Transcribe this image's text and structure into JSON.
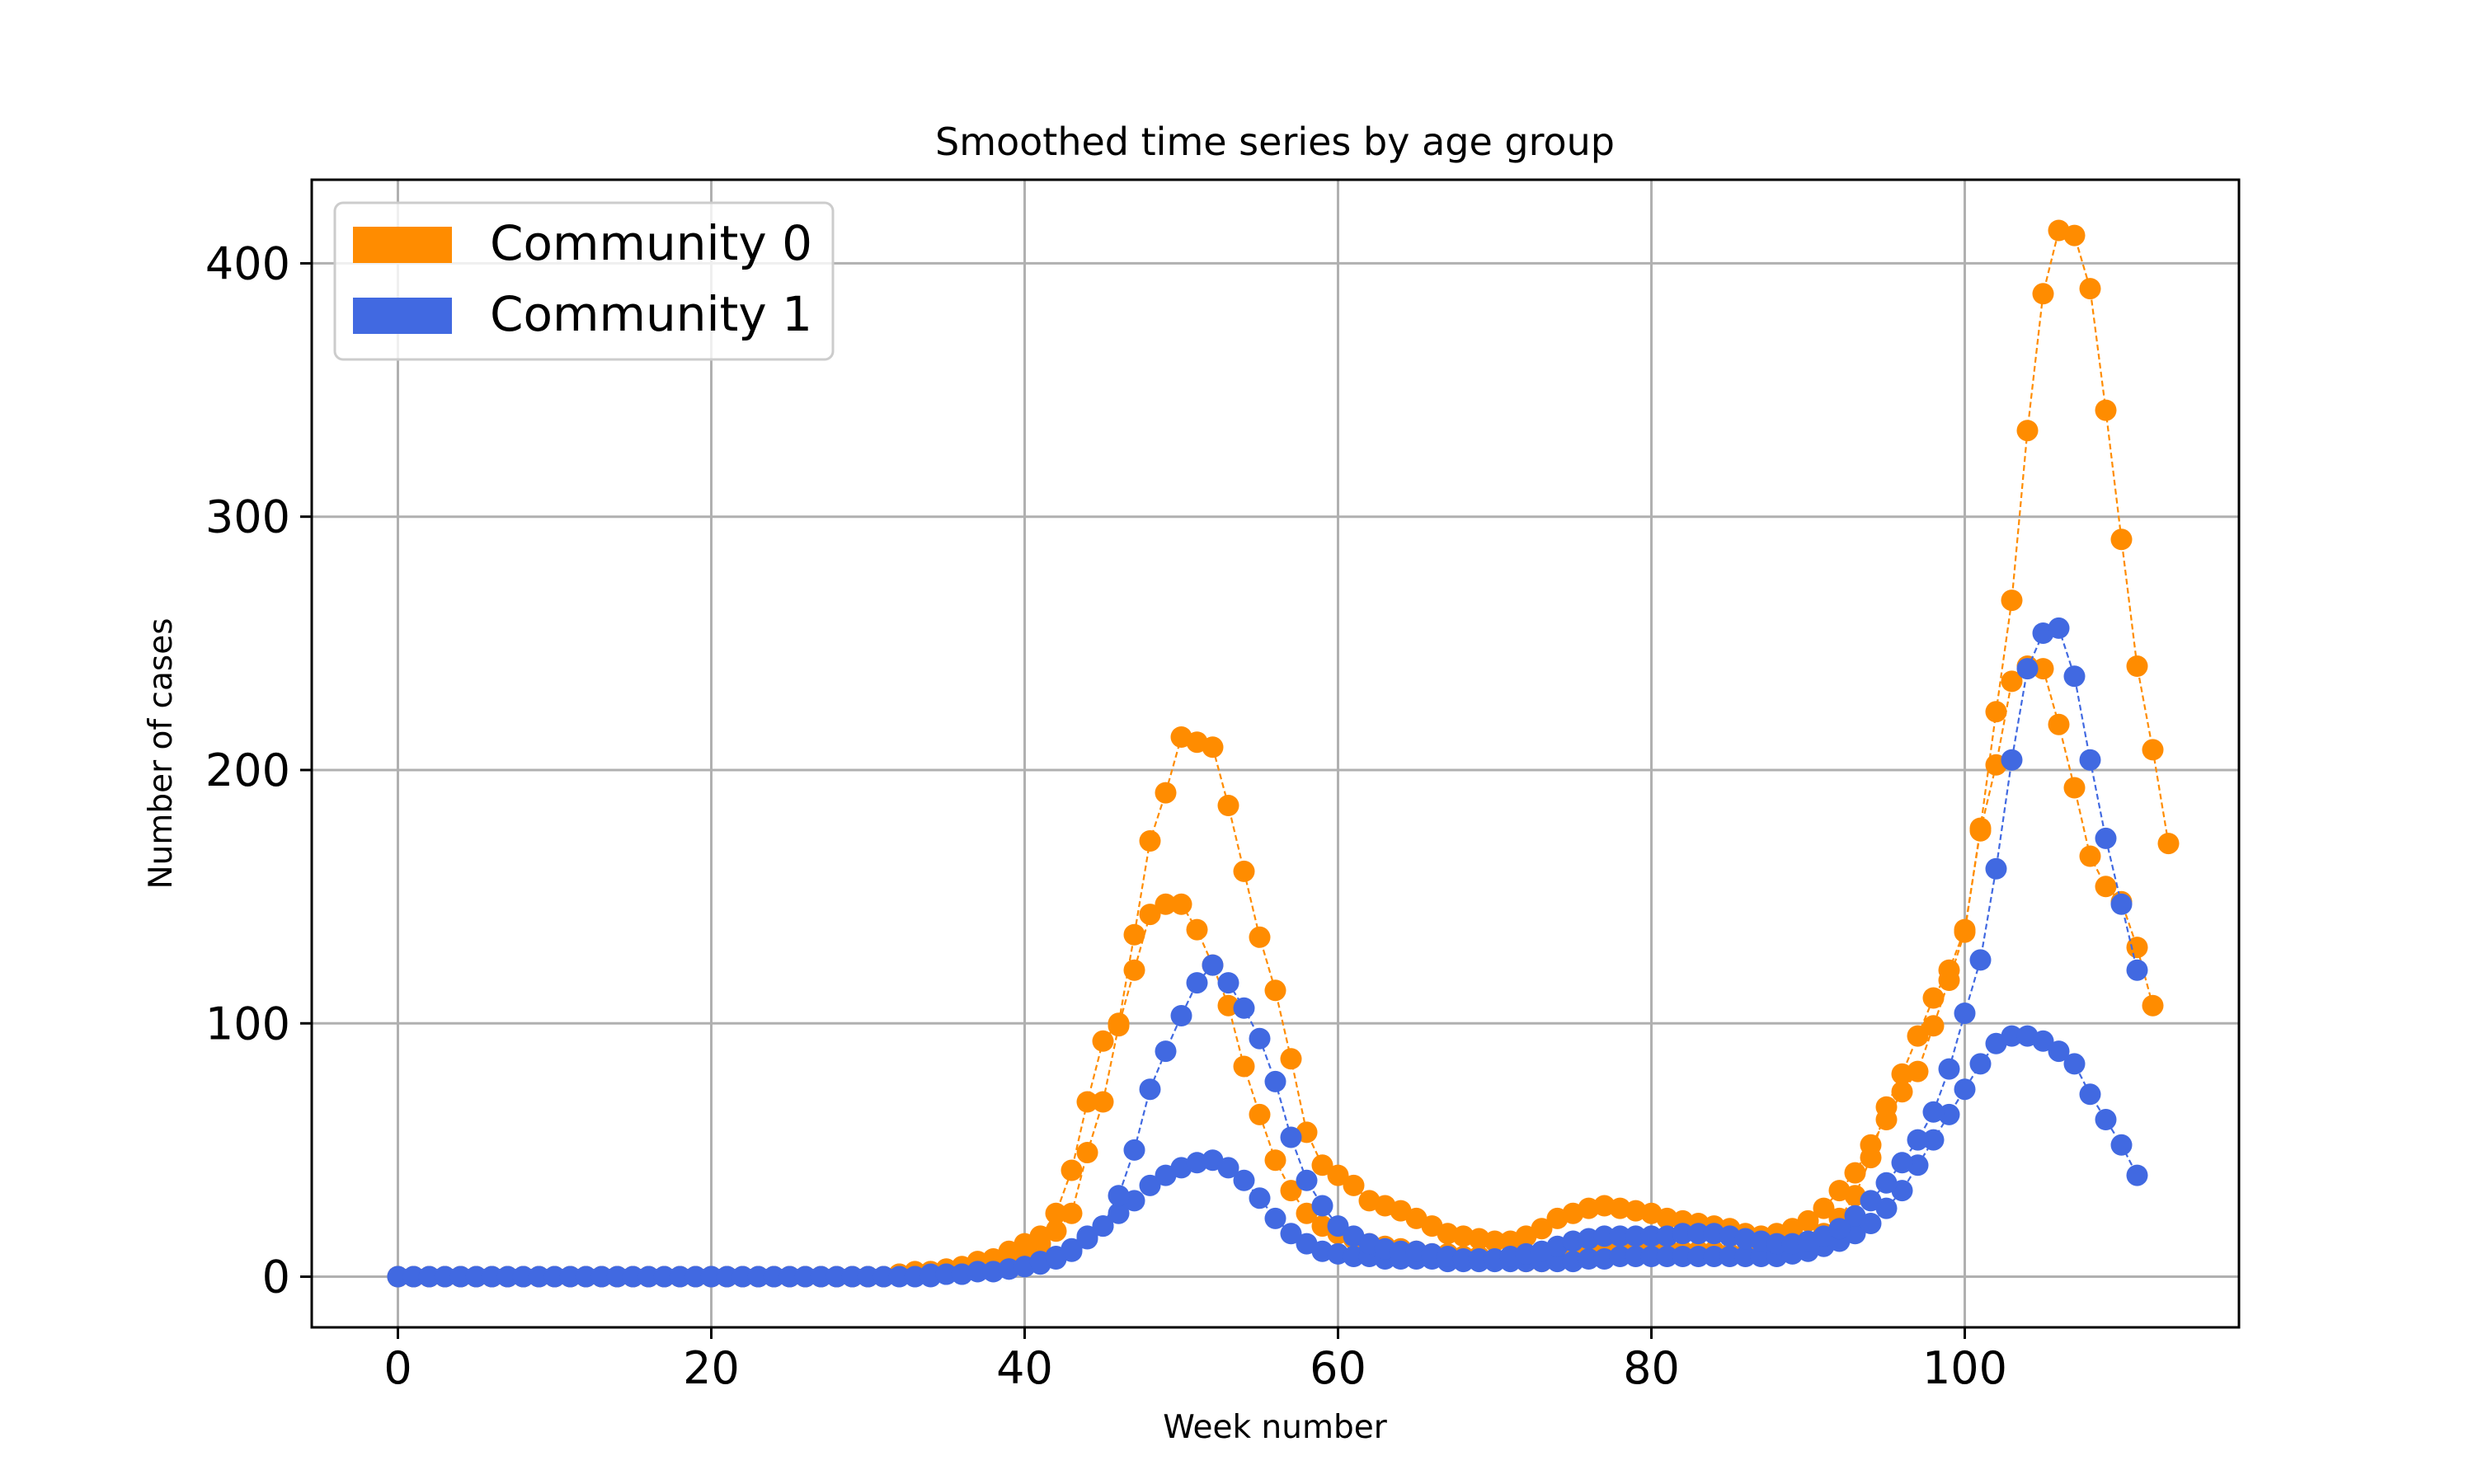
{
  "chart_data": {
    "type": "scatter",
    "title": "Smoothed time series by age group",
    "xlabel": "Week number",
    "ylabel": "Number of cases",
    "xlim": [
      -5.5,
      117.5
    ],
    "ylim": [
      -20,
      433
    ],
    "xticks": [
      0,
      20,
      40,
      60,
      80,
      100
    ],
    "yticks": [
      0,
      100,
      200,
      300,
      400
    ],
    "grid": true,
    "legend_position": "top-left",
    "colors": {
      "community_0": "#ff8c00",
      "community_1": "#4169e1"
    },
    "legend": [
      {
        "label": "Community 0",
        "color": "#ff8c00"
      },
      {
        "label": "Community 1",
        "color": "#4169e1"
      }
    ],
    "series": [
      {
        "name": "Community 0",
        "color": "#ff8c00",
        "x_start": 0,
        "values": [
          0,
          0,
          0,
          0,
          0,
          0,
          0,
          0,
          0,
          0,
          0,
          0,
          0,
          0,
          0,
          0,
          0,
          0,
          0,
          0,
          0,
          0,
          0,
          0,
          0,
          0,
          0,
          0,
          0,
          0,
          0,
          0,
          1,
          1,
          2,
          2,
          3,
          4,
          5,
          7,
          9,
          13,
          18,
          25,
          49,
          69,
          99,
          121,
          143,
          147,
          147,
          137,
          123,
          107,
          83,
          64,
          46,
          34,
          25,
          20,
          17,
          15,
          13,
          12,
          11,
          10,
          9,
          9,
          8,
          8,
          7,
          7,
          6,
          6,
          7,
          8,
          9,
          10,
          11,
          11,
          11,
          11,
          10,
          10,
          10,
          9,
          9,
          9,
          10,
          11,
          13,
          17,
          23,
          32,
          47,
          67,
          80,
          95,
          110,
          121,
          137,
          176,
          202,
          235,
          241,
          240,
          218,
          193,
          166,
          154,
          148,
          130,
          107
        ]
      },
      {
        "name": "Community 0",
        "color": "#ff8c00",
        "x_start": 0,
        "values": [
          0,
          0,
          0,
          0,
          0,
          0,
          0,
          0,
          0,
          0,
          0,
          0,
          0,
          0,
          0,
          0,
          0,
          0,
          0,
          0,
          0,
          0,
          0,
          0,
          0,
          0,
          0,
          0,
          0,
          0,
          0,
          0,
          1,
          2,
          2,
          3,
          4,
          6,
          7,
          10,
          13,
          16,
          25,
          42,
          69,
          93,
          100,
          135,
          172,
          191,
          213,
          211,
          209,
          186,
          160,
          134,
          113,
          86,
          57,
          44,
          40,
          36,
          30,
          28,
          26,
          23,
          20,
          17,
          16,
          15,
          14,
          14,
          16,
          19,
          23,
          25,
          27,
          28,
          27,
          26,
          25,
          23,
          22,
          21,
          20,
          19,
          17,
          16,
          17,
          19,
          22,
          27,
          34,
          41,
          52,
          62,
          73,
          81,
          99,
          117,
          136,
          177,
          223,
          267,
          334,
          388,
          413,
          411,
          390,
          342,
          291,
          241,
          208,
          171
        ]
      },
      {
        "name": "Community 1",
        "color": "#4169e1",
        "x_start": 0,
        "values": [
          0,
          0,
          0,
          0,
          0,
          0,
          0,
          0,
          0,
          0,
          0,
          0,
          0,
          0,
          0,
          0,
          0,
          0,
          0,
          0,
          0,
          0,
          0,
          0,
          0,
          0,
          0,
          0,
          0,
          0,
          0,
          0,
          0,
          0,
          1,
          1,
          1,
          2,
          2,
          3,
          4,
          5,
          7,
          10,
          15,
          20,
          25,
          30,
          36,
          40,
          43,
          45,
          46,
          43,
          38,
          31,
          23,
          17,
          13,
          10,
          9,
          8,
          8,
          7,
          7,
          7,
          7,
          6,
          6,
          6,
          6,
          6,
          6,
          6,
          6,
          6,
          7,
          7,
          8,
          8,
          8,
          8,
          8,
          8,
          8,
          8,
          8,
          8,
          8,
          9,
          10,
          12,
          14,
          17,
          21,
          27,
          34,
          44,
          54,
          64,
          74,
          84,
          92,
          95,
          95,
          93,
          89,
          84,
          72,
          62,
          52,
          40
        ]
      },
      {
        "name": "Community 1",
        "color": "#4169e1",
        "x_start": 0,
        "values": [
          0,
          0,
          0,
          0,
          0,
          0,
          0,
          0,
          0,
          0,
          0,
          0,
          0,
          0,
          0,
          0,
          0,
          0,
          0,
          0,
          0,
          0,
          0,
          0,
          0,
          0,
          0,
          0,
          0,
          0,
          0,
          0,
          0,
          0,
          0,
          1,
          1,
          2,
          2,
          3,
          4,
          6,
          8,
          11,
          16,
          20,
          32,
          50,
          74,
          89,
          103,
          116,
          123,
          116,
          106,
          94,
          77,
          55,
          38,
          28,
          20,
          16,
          13,
          11,
          10,
          10,
          9,
          8,
          7,
          7,
          7,
          8,
          9,
          10,
          12,
          14,
          15,
          16,
          16,
          16,
          16,
          16,
          17,
          17,
          17,
          16,
          15,
          14,
          13,
          13,
          14,
          16,
          19,
          24,
          30,
          37,
          45,
          54,
          65,
          82,
          104,
          125,
          161,
          204,
          240,
          254,
          256,
          237,
          204,
          173,
          147,
          121
        ]
      }
    ]
  }
}
